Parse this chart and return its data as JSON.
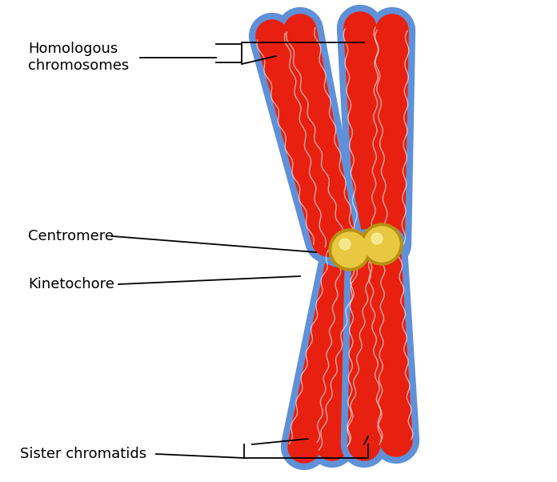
{
  "background_color": "#ffffff",
  "red_color": "#e82010",
  "blue_color": "#6090d8",
  "gold_color": "#e8c840",
  "gold_dark": "#b89010",
  "label_color": "#000000",
  "labels": {
    "homologous": "Homologous\nchromosomes",
    "centromere": "Centromere",
    "kinetochore": "Kinetochore",
    "sister": "Sister chromatids"
  },
  "fontsize": 13,
  "lw_blue": 42,
  "lw_red": 30
}
